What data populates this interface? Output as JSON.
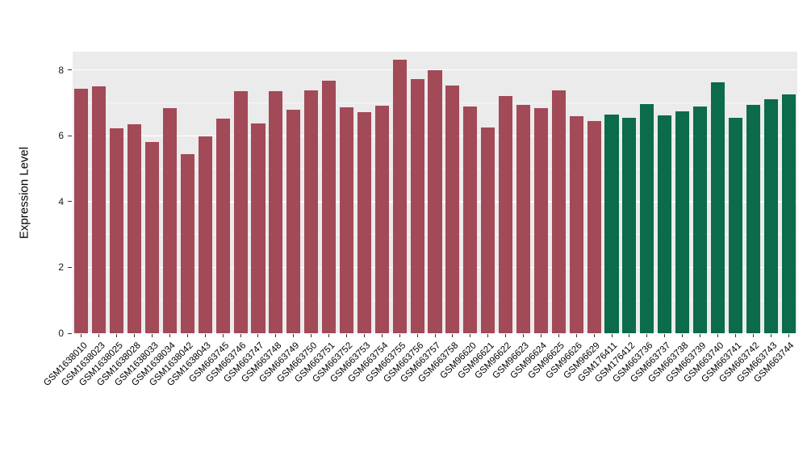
{
  "chart_data": {
    "type": "bar",
    "title": "",
    "xlabel": "",
    "ylabel": "Expression Level",
    "ylim": [
      0,
      8.56
    ],
    "yticks": [
      0,
      2,
      4,
      6,
      8
    ],
    "yticks_minor": [
      1,
      3,
      5,
      7
    ],
    "grid": true,
    "legend_position": "none",
    "group_colors": {
      "red": "#A24A57",
      "green": "#0B6B4A"
    },
    "bars": [
      {
        "label": "GSM1638010",
        "value": 7.42,
        "group": "red"
      },
      {
        "label": "GSM1638023",
        "value": 7.5,
        "group": "red"
      },
      {
        "label": "GSM1638025",
        "value": 6.22,
        "group": "red"
      },
      {
        "label": "GSM1638028",
        "value": 6.35,
        "group": "red"
      },
      {
        "label": "GSM1638033",
        "value": 5.82,
        "group": "red"
      },
      {
        "label": "GSM1638034",
        "value": 6.85,
        "group": "red"
      },
      {
        "label": "GSM1638042",
        "value": 5.45,
        "group": "red"
      },
      {
        "label": "GSM1638043",
        "value": 5.98,
        "group": "red"
      },
      {
        "label": "GSM663745",
        "value": 6.52,
        "group": "red"
      },
      {
        "label": "GSM663746",
        "value": 7.35,
        "group": "red"
      },
      {
        "label": "GSM663747",
        "value": 6.38,
        "group": "red"
      },
      {
        "label": "GSM663748",
        "value": 7.35,
        "group": "red"
      },
      {
        "label": "GSM663749",
        "value": 6.8,
        "group": "red"
      },
      {
        "label": "GSM663750",
        "value": 7.38,
        "group": "red"
      },
      {
        "label": "GSM663751",
        "value": 7.68,
        "group": "red"
      },
      {
        "label": "GSM663752",
        "value": 6.88,
        "group": "red"
      },
      {
        "label": "GSM663753",
        "value": 6.72,
        "group": "red"
      },
      {
        "label": "GSM663754",
        "value": 6.92,
        "group": "red"
      },
      {
        "label": "GSM663755",
        "value": 8.32,
        "group": "red"
      },
      {
        "label": "GSM663756",
        "value": 7.72,
        "group": "red"
      },
      {
        "label": "GSM663757",
        "value": 8.0,
        "group": "red"
      },
      {
        "label": "GSM663758",
        "value": 7.52,
        "group": "red"
      },
      {
        "label": "GSM96620",
        "value": 6.9,
        "group": "red"
      },
      {
        "label": "GSM96621",
        "value": 6.25,
        "group": "red"
      },
      {
        "label": "GSM96622",
        "value": 7.2,
        "group": "red"
      },
      {
        "label": "GSM96623",
        "value": 6.95,
        "group": "red"
      },
      {
        "label": "GSM96624",
        "value": 6.85,
        "group": "red"
      },
      {
        "label": "GSM96625",
        "value": 7.38,
        "group": "red"
      },
      {
        "label": "GSM96626",
        "value": 6.6,
        "group": "red"
      },
      {
        "label": "GSM96629",
        "value": 6.45,
        "group": "red"
      },
      {
        "label": "GSM176411",
        "value": 6.65,
        "group": "green"
      },
      {
        "label": "GSM176412",
        "value": 6.55,
        "group": "green"
      },
      {
        "label": "GSM663736",
        "value": 6.97,
        "group": "green"
      },
      {
        "label": "GSM663737",
        "value": 6.62,
        "group": "green"
      },
      {
        "label": "GSM663738",
        "value": 6.75,
        "group": "green"
      },
      {
        "label": "GSM663739",
        "value": 6.9,
        "group": "green"
      },
      {
        "label": "GSM663740",
        "value": 7.62,
        "group": "green"
      },
      {
        "label": "GSM663741",
        "value": 6.55,
        "group": "green"
      },
      {
        "label": "GSM663742",
        "value": 6.95,
        "group": "green"
      },
      {
        "label": "GSM663743",
        "value": 7.12,
        "group": "green"
      },
      {
        "label": "GSM663744",
        "value": 7.25,
        "group": "green"
      }
    ]
  }
}
